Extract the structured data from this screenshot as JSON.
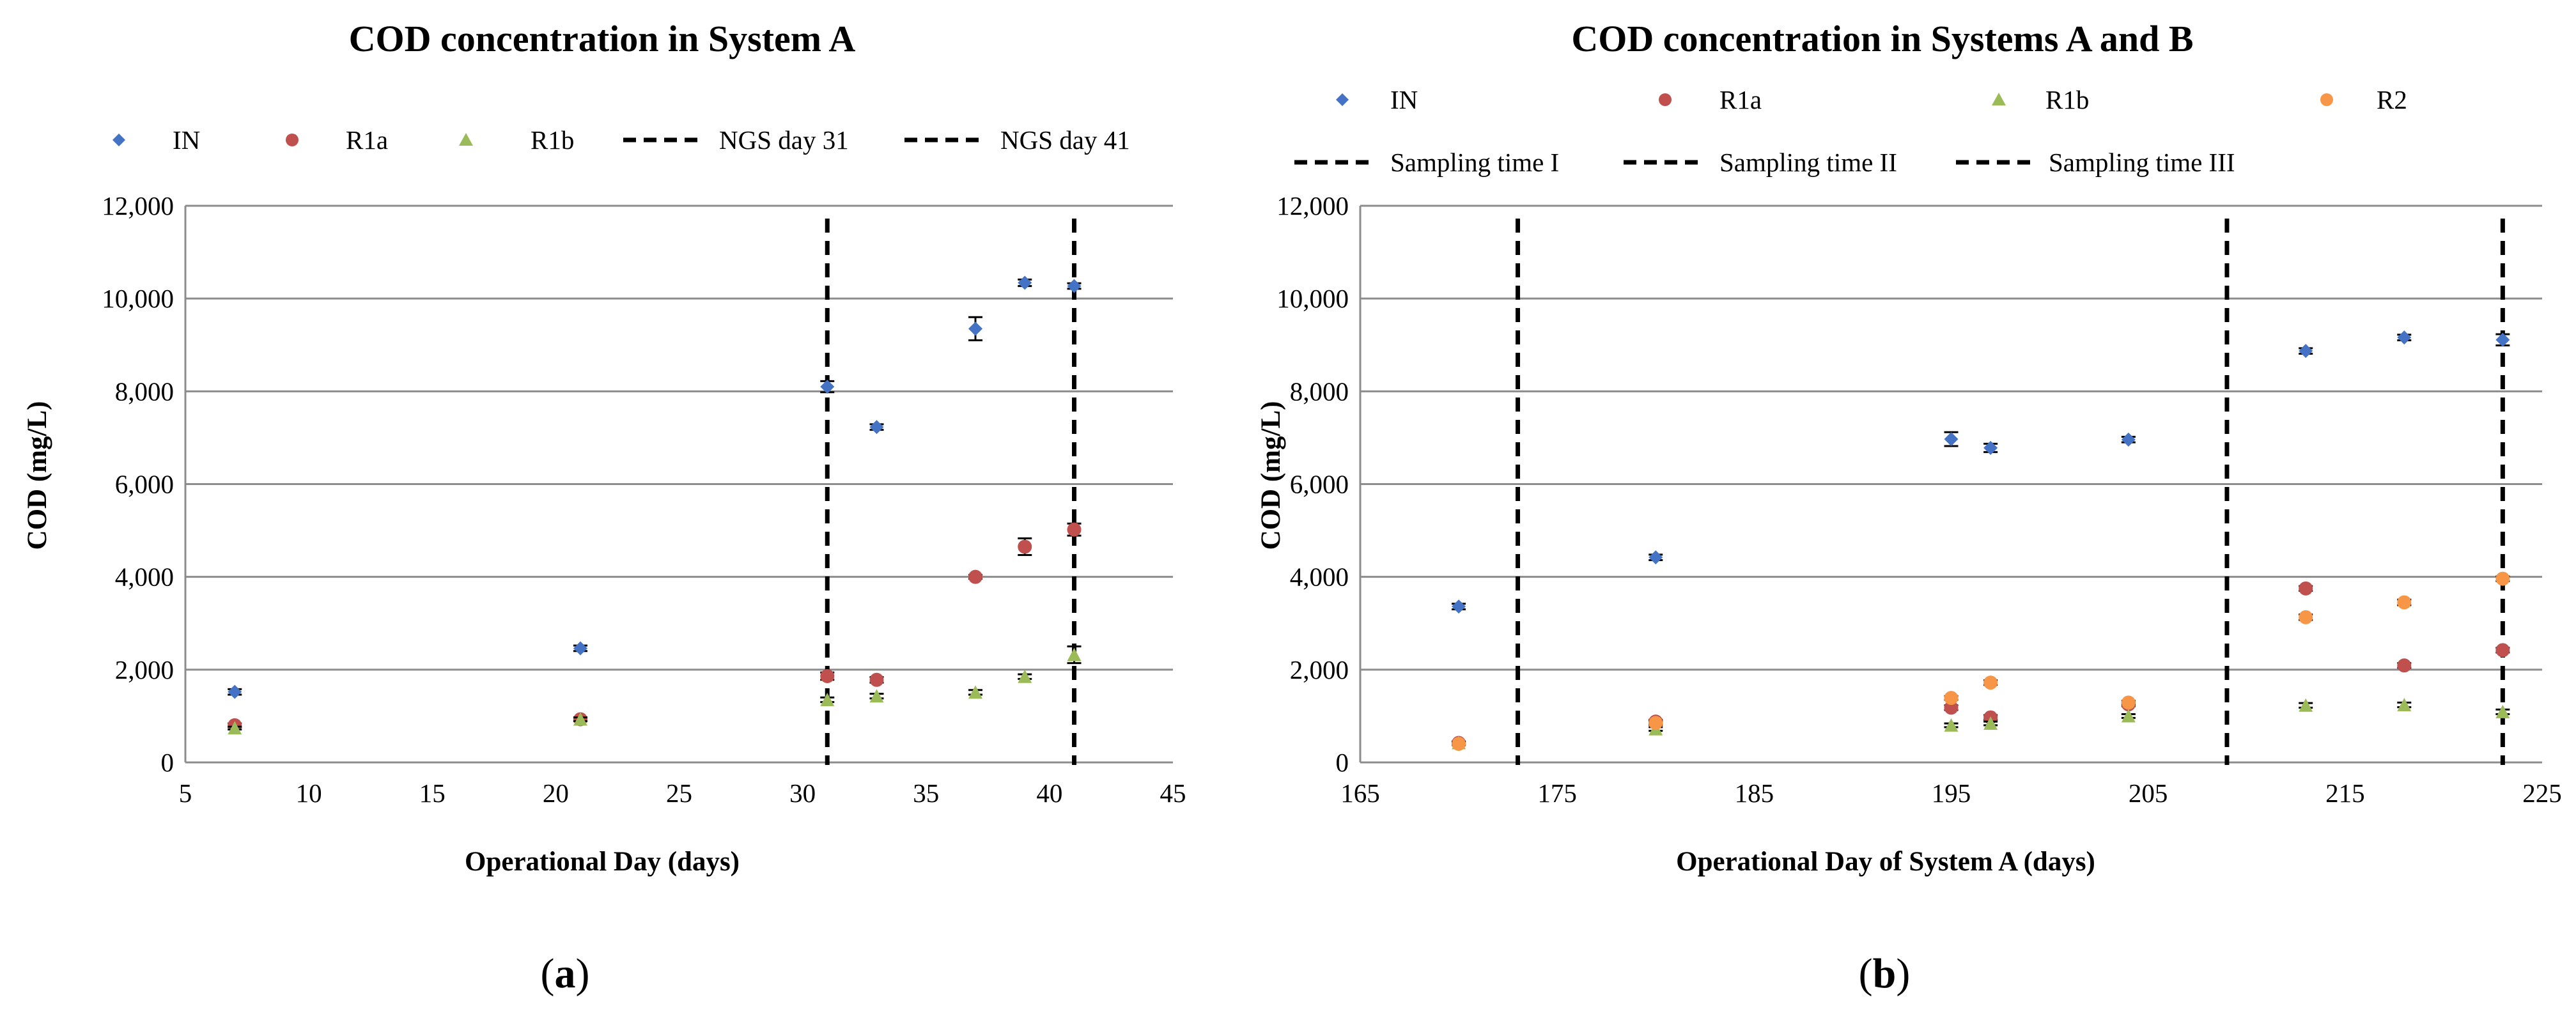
{
  "chart_data": [
    {
      "type": "scatter",
      "title": "COD concentration in System A",
      "panel_label": "a",
      "xlabel": "Operational Day (days)",
      "ylabel": "COD (mg/L)",
      "xlim": [
        5,
        45
      ],
      "ylim": [
        0,
        12000
      ],
      "xticks": [
        5,
        10,
        15,
        20,
        25,
        30,
        35,
        40,
        45
      ],
      "xtick_labels": [
        "5",
        "10",
        "15",
        "20",
        "25",
        "30",
        "35",
        "40",
        "45"
      ],
      "yticks": [
        0,
        2000,
        4000,
        6000,
        8000,
        10000,
        12000
      ],
      "ytick_labels": [
        "0",
        "2,000",
        "4,000",
        "6,000",
        "8,000",
        "10,000",
        "12,000"
      ],
      "grid": "horizontal",
      "legend_position": "top",
      "series": [
        {
          "name": "IN",
          "marker": "diamond",
          "color": "#4472C4",
          "x": [
            7,
            21,
            31,
            33,
            37,
            39,
            41
          ],
          "y": [
            1520,
            2460,
            8100,
            7230,
            9350,
            10340,
            10270
          ],
          "err": [
            60,
            60,
            120,
            60,
            250,
            70,
            60
          ]
        },
        {
          "name": "R1a",
          "marker": "circle",
          "color": "#C0504D",
          "x": [
            7,
            21,
            31,
            33,
            37,
            39,
            41
          ],
          "y": [
            800,
            930,
            1860,
            1780,
            4000,
            4650,
            5020
          ],
          "err": [
            40,
            40,
            80,
            60,
            40,
            180,
            130
          ]
        },
        {
          "name": "R1b",
          "marker": "triangle",
          "color": "#9BBB59",
          "x": [
            7,
            21,
            31,
            33,
            37,
            39,
            41
          ],
          "y": [
            740,
            930,
            1350,
            1430,
            1510,
            1850,
            2320
          ],
          "err": [
            30,
            40,
            50,
            50,
            50,
            50,
            180
          ]
        }
      ],
      "vlines": [
        {
          "name": "NGS day 31",
          "x": 31
        },
        {
          "name": "NGS day 41",
          "x": 41
        }
      ]
    },
    {
      "type": "scatter",
      "title": "COD concentration in Systems A and B",
      "panel_label": "b",
      "xlabel": "Operational Day of System A (days)",
      "ylabel": "COD (mg/L)",
      "xlim": [
        165,
        225
      ],
      "ylim": [
        0,
        12000
      ],
      "xticks": [
        165,
        175,
        185,
        195,
        205,
        215,
        225
      ],
      "xtick_labels": [
        "165",
        "175",
        "185",
        "195",
        "205",
        "215",
        "225"
      ],
      "yticks": [
        0,
        2000,
        4000,
        6000,
        8000,
        10000,
        12000
      ],
      "ytick_labels": [
        "0",
        "2,000",
        "4,000",
        "6,000",
        "8,000",
        "10,000",
        "12,000"
      ],
      "grid": "horizontal",
      "legend_position": "top",
      "series": [
        {
          "name": "IN",
          "marker": "diamond",
          "color": "#4472C4",
          "x": [
            170,
            180,
            195,
            197,
            204,
            213,
            218,
            223
          ],
          "y": [
            3360,
            4420,
            6970,
            6780,
            6960,
            8870,
            9160,
            9110
          ],
          "err": [
            60,
            60,
            150,
            90,
            60,
            60,
            60,
            120
          ]
        },
        {
          "name": "R1a",
          "marker": "circle",
          "color": "#C0504D",
          "x": [
            170,
            180,
            195,
            197,
            204,
            213,
            218,
            223
          ],
          "y": [
            420,
            880,
            1180,
            970,
            1250,
            3750,
            2090,
            2420
          ],
          "err": [
            30,
            40,
            50,
            50,
            40,
            50,
            50,
            50
          ]
        },
        {
          "name": "R1b",
          "marker": "triangle",
          "color": "#9BBB59",
          "x": [
            170,
            180,
            195,
            197,
            204,
            213,
            218,
            223
          ],
          "y": [
            420,
            720,
            800,
            840,
            1000,
            1230,
            1240,
            1090
          ],
          "err": [
            30,
            40,
            40,
            40,
            40,
            50,
            50,
            50
          ]
        },
        {
          "name": "R2",
          "marker": "circle",
          "color": "#F79646",
          "x": [
            170,
            180,
            195,
            197,
            204,
            213,
            218,
            223
          ],
          "y": [
            400,
            850,
            1390,
            1720,
            1290,
            3130,
            3450,
            3960
          ],
          "err": [
            30,
            40,
            40,
            50,
            40,
            60,
            60,
            50
          ]
        }
      ],
      "vlines": [
        {
          "name": "Sampling time I",
          "x": 173
        },
        {
          "name": "Sampling time II",
          "x": 209
        },
        {
          "name": "Sampling time III",
          "x": 223
        }
      ]
    }
  ]
}
